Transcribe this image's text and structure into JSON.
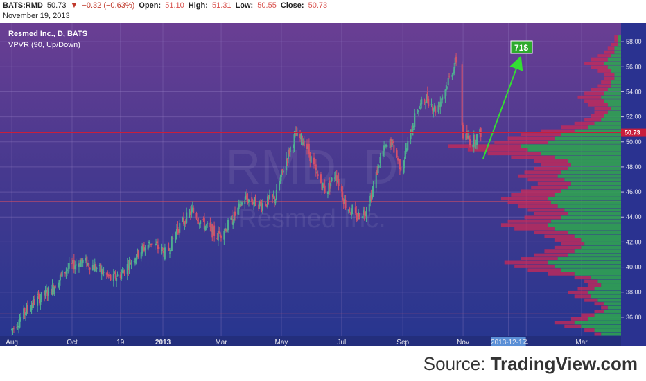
{
  "header": {
    "symbol": "BATS:RMD",
    "last": "50.73",
    "change_icon": "down-triangle-icon",
    "change": "−0.32 (−0.63%)",
    "open_label": "Open:",
    "open": "51.10",
    "high_label": "High:",
    "high": "51.31",
    "low_label": "Low:",
    "low": "50.55",
    "close_label": "Close:",
    "close": "50.73",
    "date": "November 19, 2013"
  },
  "legend": {
    "title": "Resmed Inc., D, BATS",
    "indicator": "VPVR (90, Up/Down)"
  },
  "watermark": {
    "ticker": "RMD, D",
    "company": "Resmed Inc."
  },
  "annotation": {
    "target_label": "71$"
  },
  "footer": {
    "source_prefix": "Source: ",
    "source_brand": "TradingView.com"
  },
  "colors": {
    "bg_top": "#6a3e93",
    "bg_bottom": "#26368f",
    "up_volume": "#2ea84f",
    "down_volume": "#cc2a55",
    "candle_up": "#4fae92",
    "candle_down": "#d4506a",
    "last_price_tag": "#c81e3c",
    "target_box": "#2eaa2e",
    "arrow": "#33dd33"
  },
  "chart_data": {
    "type": "candlestick",
    "title": "Resmed Inc., D, BATS",
    "indicator": "VPVR (90, Up/Down)",
    "ylim": [
      34.5,
      59.5
    ],
    "y_ticks": [
      "36.00",
      "38.00",
      "40.00",
      "42.00",
      "44.00",
      "46.00",
      "48.00",
      "50.00",
      "52.00",
      "54.00",
      "56.00",
      "58.00"
    ],
    "x_ticks": [
      "Aug",
      "Oct",
      "19",
      "2013",
      "Mar",
      "May",
      "Jul",
      "Sep",
      "Nov",
      "2013-12-17",
      "4",
      "Mar"
    ],
    "last_price": "50.73",
    "price_path": [
      [
        "2012-08-01",
        35.0
      ],
      [
        "2012-08-20",
        37.0
      ],
      [
        "2012-09-10",
        38.2
      ],
      [
        "2012-09-25",
        39.8
      ],
      [
        "2012-10-10",
        40.5
      ],
      [
        "2012-10-25",
        40.0
      ],
      [
        "2012-11-10",
        39.0
      ],
      [
        "2012-11-20",
        39.5
      ],
      [
        "2012-12-05",
        41.0
      ],
      [
        "2012-12-20",
        42.0
      ],
      [
        "2013-01-05",
        41.0
      ],
      [
        "2013-01-15",
        43.0
      ],
      [
        "2013-01-31",
        44.5
      ],
      [
        "2013-02-10",
        43.5
      ],
      [
        "2013-02-25",
        42.5
      ],
      [
        "2013-03-10",
        43.5
      ],
      [
        "2013-03-25",
        45.5
      ],
      [
        "2013-04-10",
        45.0
      ],
      [
        "2013-04-25",
        45.5
      ],
      [
        "2013-05-05",
        48.5
      ],
      [
        "2013-05-15",
        50.5
      ],
      [
        "2013-05-25",
        50.0
      ],
      [
        "2013-06-05",
        47.5
      ],
      [
        "2013-06-15",
        46.0
      ],
      [
        "2013-06-25",
        47.5
      ],
      [
        "2013-07-05",
        45.0
      ],
      [
        "2013-07-15",
        44.0
      ],
      [
        "2013-07-25",
        44.5
      ],
      [
        "2013-08-01",
        46.0
      ],
      [
        "2013-08-10",
        49.0
      ],
      [
        "2013-08-20",
        50.0
      ],
      [
        "2013-08-30",
        48.0
      ],
      [
        "2013-09-05",
        49.5
      ],
      [
        "2013-09-15",
        52.5
      ],
      [
        "2013-09-25",
        53.5
      ],
      [
        "2013-10-05",
        52.5
      ],
      [
        "2013-10-15",
        54.5
      ],
      [
        "2013-10-25",
        56.5
      ],
      [
        "2013-11-01",
        50.5
      ],
      [
        "2013-11-10",
        50.0
      ],
      [
        "2013-11-19",
        50.73
      ]
    ],
    "volume_profile_prices": [
      34.5,
      34.8,
      35.1,
      35.4,
      35.7,
      36.0,
      36.3,
      36.6,
      36.9,
      37.2,
      37.5,
      37.8,
      38.1,
      38.4,
      38.7,
      39.0,
      39.3,
      39.6,
      39.9,
      40.2,
      40.5,
      40.8,
      41.1,
      41.4,
      41.7,
      42.0,
      42.3,
      42.6,
      42.9,
      43.2,
      43.5,
      43.8,
      44.1,
      44.4,
      44.7,
      45.0,
      45.3,
      45.6,
      45.9,
      46.2,
      46.5,
      46.8,
      47.1,
      47.4,
      47.7,
      48.0,
      48.3,
      48.6,
      48.9,
      49.2,
      49.5,
      49.8,
      50.1,
      50.4,
      50.7,
      51.0,
      51.3,
      51.6,
      51.9,
      52.2,
      52.5,
      52.8,
      53.1,
      53.4,
      53.7,
      54.0,
      54.3,
      54.6,
      54.9,
      55.2,
      55.5,
      55.8,
      56.1,
      56.4,
      56.7,
      57.0,
      57.3,
      57.6,
      57.9,
      58.2,
      58.5,
      58.8,
      59.1,
      59.4
    ],
    "volume_profile_up": [
      6,
      8,
      12,
      14,
      10,
      8,
      5,
      4,
      5,
      7,
      9,
      10,
      8,
      6,
      7,
      9,
      14,
      18,
      20,
      22,
      19,
      16,
      14,
      12,
      11,
      12,
      14,
      16,
      20,
      22,
      21,
      18,
      16,
      17,
      19,
      21,
      22,
      20,
      18,
      16,
      15,
      17,
      19,
      18,
      16,
      15,
      16,
      20,
      24,
      28,
      30,
      22,
      20,
      18,
      14,
      10,
      8,
      6,
      5,
      4,
      3,
      4,
      5,
      6,
      5,
      4,
      3,
      3,
      2,
      2,
      3,
      4,
      5,
      4,
      3,
      2,
      2,
      1,
      1,
      1,
      0,
      0,
      0,
      0
    ],
    "volume_profile_down": [
      2,
      3,
      5,
      6,
      5,
      4,
      3,
      2,
      3,
      4,
      5,
      6,
      5,
      4,
      4,
      5,
      8,
      10,
      12,
      13,
      11,
      10,
      9,
      8,
      7,
      8,
      9,
      10,
      12,
      14,
      13,
      11,
      10,
      11,
      12,
      13,
      14,
      13,
      12,
      11,
      10,
      11,
      12,
      11,
      10,
      9,
      10,
      13,
      16,
      18,
      22,
      16,
      14,
      12,
      10,
      8,
      6,
      5,
      4,
      4,
      5,
      6,
      6,
      7,
      6,
      5,
      4,
      3,
      3,
      3,
      4,
      5,
      6,
      5,
      4,
      3,
      2,
      2,
      1,
      1,
      0,
      0,
      0,
      0
    ]
  }
}
